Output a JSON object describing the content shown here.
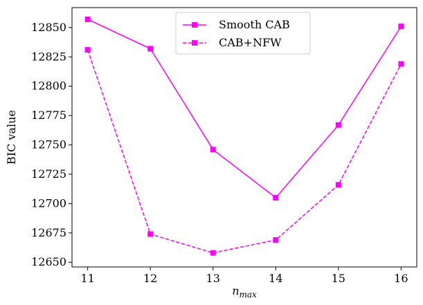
{
  "chart_data": {
    "type": "line",
    "title": "",
    "xlabel_base": "n",
    "xlabel_sub": "max",
    "ylabel": "BIC value",
    "x": [
      11,
      12,
      13,
      14,
      15,
      16
    ],
    "xticks": [
      11,
      12,
      13,
      14,
      15,
      16
    ],
    "yticks": [
      12650,
      12675,
      12700,
      12725,
      12750,
      12775,
      12800,
      12825,
      12850
    ],
    "xlim": [
      10.75,
      16.25
    ],
    "ylim": [
      12646,
      12867
    ],
    "grid": false,
    "legend_position": "top-center",
    "series": [
      {
        "name": "Smooth CAB",
        "values": [
          12857,
          12832,
          12746,
          12705,
          12767,
          12851
        ],
        "color": "#ff00ff",
        "line_style": "solid",
        "marker": "square"
      },
      {
        "name": "CAB+NFW",
        "values": [
          12831,
          12674,
          12658,
          12669,
          12716,
          12819
        ],
        "color": "#ff00ff",
        "line_style": "dashed",
        "marker": "square"
      }
    ]
  }
}
